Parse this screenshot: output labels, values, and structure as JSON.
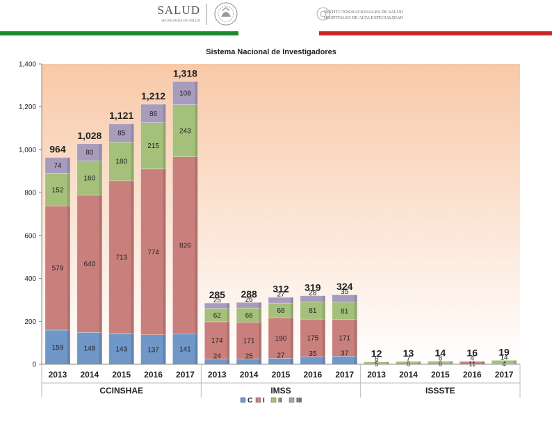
{
  "header": {
    "left_logo_title": "SALUD",
    "left_logo_subtitle": "SECRETARÍA DE SALUD",
    "right_logo_line1": "INSTITUTOS NACIONALES DE SALUD",
    "right_logo_line2": "HOSPITALES DE ALTA ESPECIALIDAD",
    "green": "#1a8a2e",
    "red": "#c8282a"
  },
  "chart_data": {
    "type": "bar",
    "stacked": true,
    "title": "Sistema Nacional de Investigadores",
    "ylim": [
      0,
      1400
    ],
    "yticks": [
      "0",
      "200",
      "400",
      "600",
      "800",
      "1,000",
      "1,200",
      "1,400"
    ],
    "categories": [
      "2013",
      "2014",
      "2015",
      "2016",
      "2017",
      "2013",
      "2014",
      "2015",
      "2016",
      "2017",
      "2013",
      "2014",
      "2015",
      "2016",
      "2017"
    ],
    "groups": [
      {
        "name": "CCINSHAE",
        "size": 5
      },
      {
        "name": "IMSS",
        "size": 5
      },
      {
        "name": "ISSSTE",
        "size": 5
      }
    ],
    "series": [
      {
        "name": "C",
        "color": "#6f97c8",
        "values": [
          159,
          148,
          143,
          137,
          141,
          24,
          25,
          27,
          35,
          37,
          0,
          0,
          0,
          0,
          0
        ]
      },
      {
        "name": "I",
        "color": "#c9807d",
        "values": [
          579,
          640,
          713,
          774,
          826,
          174,
          171,
          190,
          175,
          171,
          5,
          6,
          6,
          11,
          4
        ]
      },
      {
        "name": "II",
        "color": "#a4c07a",
        "values": [
          152,
          160,
          180,
          215,
          243,
          62,
          66,
          68,
          81,
          81,
          6,
          7,
          8,
          4,
          14
        ]
      },
      {
        "name": "III",
        "color": "#a89cbd",
        "values": [
          74,
          80,
          85,
          86,
          108,
          25,
          26,
          27,
          28,
          35,
          0,
          0,
          0,
          0,
          0
        ]
      }
    ],
    "data_labels": [
      [
        "159",
        "148",
        "143",
        "137",
        "141",
        "24",
        "25",
        "27",
        "35",
        "37",
        "",
        "",
        "",
        "",
        ""
      ],
      [
        "579",
        "640",
        "713",
        "774",
        "826",
        "174",
        "171",
        "190",
        "175",
        "171",
        "5",
        "6",
        "6",
        "11",
        "4"
      ],
      [
        "152",
        "160",
        "180",
        "215",
        "243",
        "62",
        "66",
        "68",
        "81",
        "81",
        "6",
        "7",
        "8",
        "4",
        "14"
      ],
      [
        "74",
        "80",
        "85",
        "86",
        "108",
        "25",
        "26",
        "27",
        "28",
        "35",
        "",
        "",
        "",
        "",
        ""
      ]
    ],
    "totals": [
      "964",
      "1,028",
      "1,121",
      "1,212",
      "1,318",
      "285",
      "288",
      "312",
      "319",
      "324",
      "12",
      "13",
      "14",
      "16",
      "19"
    ],
    "legend": [
      "C",
      "I",
      "II",
      "III"
    ],
    "legend_position": "bottom"
  }
}
